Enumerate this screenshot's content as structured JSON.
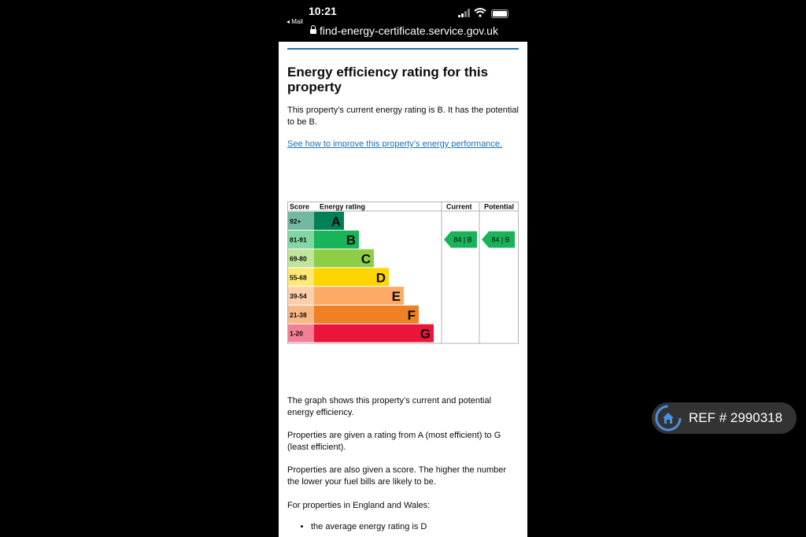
{
  "status_bar": {
    "time": "10:21",
    "back_label": "◂ Mail",
    "url": "find-energy-certificate.service.gov.uk"
  },
  "page": {
    "heading": "Energy efficiency rating for this property",
    "intro": "This property’s current energy rating is B. It has the potential to be B.",
    "improve_link": "See how to improve this property’s energy performance.",
    "graph_text": "The graph shows this property’s current and potential energy efficiency.",
    "rating_text": "Properties are given a rating from A (most efficient) to G (least efficient).",
    "score_text": "Properties are also given a score. The higher the number the lower your fuel bills are likely to be.",
    "region_text": "For properties in England and Wales:",
    "bullets": [
      "the average energy rating is D"
    ]
  },
  "chart_data": {
    "type": "table",
    "columns": [
      "Score",
      "Energy rating",
      "Current",
      "Potential"
    ],
    "bands": [
      {
        "score": "92+",
        "letter": "A",
        "color": "#008054"
      },
      {
        "score": "81-91",
        "letter": "B",
        "color": "#19b459"
      },
      {
        "score": "69-80",
        "letter": "C",
        "color": "#8dce46"
      },
      {
        "score": "55-68",
        "letter": "D",
        "color": "#ffd500"
      },
      {
        "score": "39-54",
        "letter": "E",
        "color": "#fcaa65"
      },
      {
        "score": "21-38",
        "letter": "F",
        "color": "#ef8023"
      },
      {
        "score": "1-20",
        "letter": "G",
        "color": "#e9153b"
      }
    ],
    "current": {
      "score": 84,
      "letter": "B",
      "label": "84 | B"
    },
    "potential": {
      "score": 84,
      "letter": "B",
      "label": "84 | B"
    }
  },
  "watermark": {
    "text": "REF # 2990318"
  }
}
